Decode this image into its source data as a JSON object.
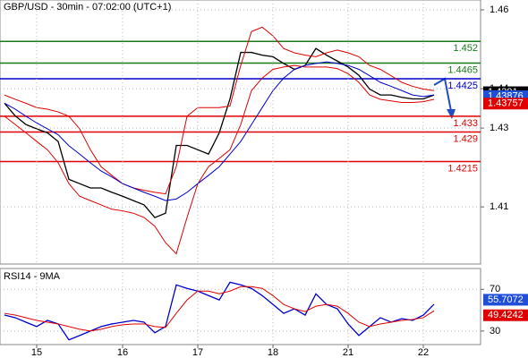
{
  "chart_data": [
    {
      "type": "line",
      "title": "GBP/USD - 30min - 07:02:00 (UTC+1)",
      "ylim": [
        1.3955,
        1.4625
      ],
      "yticks": [
        1.46,
        1.44,
        1.43,
        1.41
      ],
      "grid": true,
      "series": [
        {
          "color": "#000000",
          "values": [
            1.4363,
            1.4331,
            1.4309,
            1.4298,
            1.4288,
            1.4266,
            1.417,
            1.4159,
            1.4148,
            1.4148,
            1.4137,
            1.4127,
            1.4116,
            1.4105,
            1.4073,
            1.4084,
            1.4256,
            1.4256,
            1.4245,
            1.4234,
            1.4288,
            1.4374,
            1.4492,
            1.4492,
            1.4485,
            1.4481,
            1.4464,
            1.4449,
            1.4459,
            1.4502,
            1.4485,
            1.447,
            1.4455,
            1.4434,
            1.4399,
            1.4384,
            1.4384,
            1.4378,
            1.4374,
            1.4374,
            1.4384
          ]
        },
        {
          "color": "#e00000",
          "values": [
            1.4384,
            1.4373,
            1.4363,
            1.4352,
            1.4348,
            1.4341,
            1.433,
            1.4298,
            1.4245,
            1.4202,
            1.418,
            1.4159,
            1.4148,
            1.4142,
            1.4137,
            1.4133,
            1.4202,
            1.433,
            1.4352,
            1.4352,
            1.4352,
            1.4356,
            1.4459,
            1.4545,
            1.4556,
            1.4534,
            1.4502,
            1.4491,
            1.4485,
            1.4481,
            1.4491,
            1.4498,
            1.4491,
            1.4481,
            1.4459,
            1.4449,
            1.4433,
            1.4416,
            1.4406,
            1.4399,
            1.4395
          ]
        },
        {
          "color": "#e00000",
          "values": [
            1.433,
            1.4309,
            1.4288,
            1.4266,
            1.4245,
            1.4212,
            1.4159,
            1.4127,
            1.4116,
            1.4105,
            1.4094,
            1.409,
            1.4084,
            1.4073,
            1.4051,
            1.4009,
            1.3981,
            1.4073,
            1.4159,
            1.4202,
            1.4223,
            1.4245,
            1.4309,
            1.4395,
            1.4427,
            1.4449,
            1.4455,
            1.4459,
            1.4455,
            1.4455,
            1.4455,
            1.4451,
            1.4438,
            1.4416,
            1.4384,
            1.4373,
            1.4369,
            1.4365,
            1.4365,
            1.4367,
            1.4373
          ]
        },
        {
          "color": "#0000cc",
          "values": [
            1.4363,
            1.4348,
            1.433,
            1.4313,
            1.4298,
            1.4283,
            1.4255,
            1.4234,
            1.4212,
            1.4191,
            1.4176,
            1.4159,
            1.4148,
            1.4137,
            1.4127,
            1.4116,
            1.412,
            1.4137,
            1.4159,
            1.418,
            1.4202,
            1.4234,
            1.4266,
            1.4309,
            1.4352,
            1.4395,
            1.4427,
            1.4449,
            1.4459,
            1.4464,
            1.4468,
            1.4464,
            1.4459,
            1.4449,
            1.4433,
            1.4416,
            1.4406,
            1.4395,
            1.4384,
            1.438,
            1.4384
          ]
        }
      ],
      "levels": [
        {
          "value": 1.452,
          "color": "#1a7a1a"
        },
        {
          "value": 1.4465,
          "color": "#1a7a1a"
        },
        {
          "value": 1.4425,
          "color": "#0000cc"
        },
        {
          "value": 1.433,
          "color": "#e00000"
        },
        {
          "value": 1.429,
          "color": "#e00000"
        },
        {
          "value": 1.4215,
          "color": "#e00000"
        }
      ],
      "markers": [
        {
          "value": 1.4391,
          "color": "#000000"
        },
        {
          "value": 1.43876,
          "color": "#1f4fd8"
        },
        {
          "value": 1.43757,
          "color": "#e00000"
        }
      ]
    },
    {
      "type": "line",
      "title": "RSI14 - 9MA",
      "categories": [
        null,
        null,
        null,
        "15",
        null,
        null,
        null,
        null,
        null,
        null,
        null,
        "16",
        null,
        null,
        null,
        null,
        null,
        null,
        "17",
        null,
        null,
        null,
        null,
        null,
        null,
        "18",
        null,
        null,
        null,
        null,
        null,
        null,
        "21",
        null,
        null,
        null,
        null,
        null,
        null,
        "22",
        null
      ],
      "ylim": [
        17,
        90
      ],
      "yticks": [
        70,
        30
      ],
      "grid": true,
      "series": [
        {
          "color": "#0000cc",
          "values": [
            45.3,
            42.8,
            38.5,
            34.3,
            40.2,
            36.8,
            21.5,
            25.7,
            30,
            34.3,
            36.8,
            38.5,
            40.2,
            38.5,
            28.3,
            34.3,
            74.3,
            70.9,
            68.3,
            64.0,
            59.8,
            76.8,
            74.3,
            70.9,
            64.0,
            55.5,
            47.0,
            51.3,
            45.3,
            65.7,
            55.5,
            51.3,
            36.8,
            25.7,
            34.3,
            42.8,
            38.5,
            41.9,
            40.2,
            45.3,
            55.7
          ]
        },
        {
          "color": "#e00000",
          "values": [
            47.0,
            45.3,
            42.8,
            40.2,
            38.5,
            36.8,
            34.3,
            31.7,
            30,
            31.7,
            34.3,
            36.0,
            36.8,
            36.8,
            34.3,
            33.4,
            47.0,
            59.8,
            68.3,
            68.3,
            65.7,
            68.3,
            72.6,
            72.6,
            70.9,
            64.0,
            55.5,
            51.3,
            48.7,
            53.8,
            55.5,
            53.8,
            47.0,
            38.5,
            34.3,
            36.8,
            38.5,
            40.2,
            41.1,
            42.8,
            49.4
          ]
        }
      ],
      "markers": [
        {
          "value": 55.7072,
          "color": "#1f4fd8"
        },
        {
          "value": 49.4242,
          "color": "#e00000"
        }
      ]
    }
  ]
}
